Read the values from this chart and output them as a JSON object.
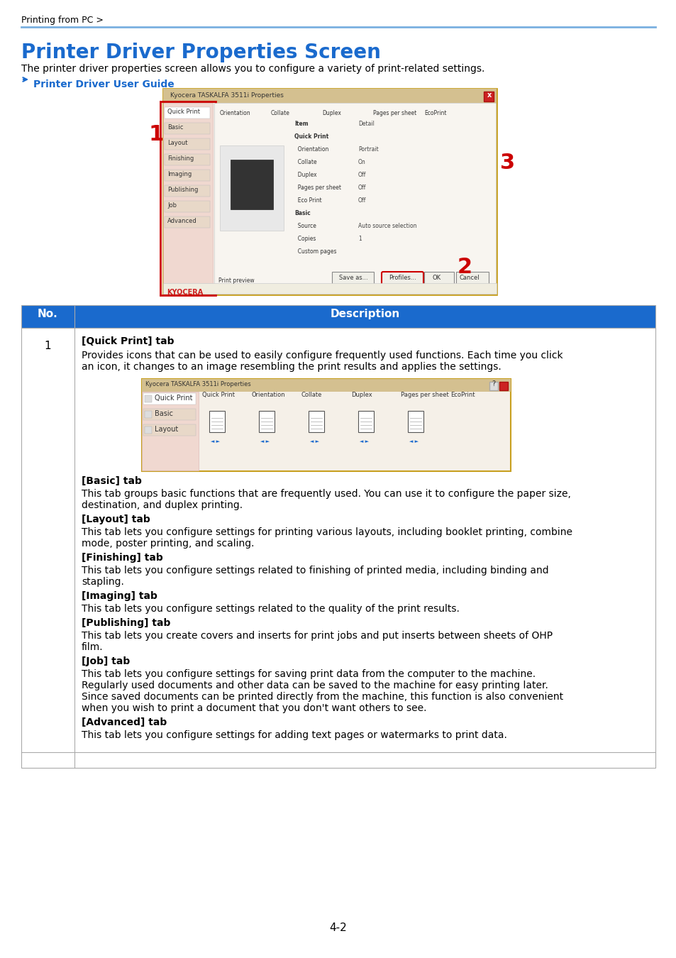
{
  "page_bg": "#ffffff",
  "breadcrumb": "Printing from PC >",
  "breadcrumb_color": "#000000",
  "breadcrumb_fontsize": 9,
  "separator_color": "#7ab0e0",
  "title": "Printer Driver Properties Screen",
  "title_color": "#1a6acd",
  "title_fontsize": 20,
  "subtitle": "The printer driver properties screen allows you to configure a variety of print-related settings.",
  "subtitle_fontsize": 10,
  "link_text": "Printer Driver User Guide",
  "link_color": "#1a6acd",
  "link_fontsize": 10,
  "table_header_bg": "#1a6acd",
  "table_header_text": "#ffffff",
  "table_border_color": "#aaaaaa",
  "table_row_bg": "#ffffff",
  "col1_header": "No.",
  "col2_header": "Description",
  "row1_no": "1",
  "row1_bold_labels": [
    "[Quick Print] tab",
    "[Basic] tab",
    "[Layout] tab",
    "[Finishing] tab",
    "[Imaging] tab",
    "[Publishing] tab",
    "[Job] tab",
    "[Advanced] tab"
  ],
  "row1_desc_intro": "Provides icons that can be used to easily configure frequently used functions. Each time you click\nan icon, it changes to an image resembling the print results and applies the settings.",
  "basic_tab_text": "This tab groups basic functions that are frequently used. You can use it to configure the paper size,\ndestination, and duplex printing.",
  "layout_tab_text": "This tab lets you configure settings for printing various layouts, including booklet printing, combine\nmode, poster printing, and scaling.",
  "finishing_tab_text": "This tab lets you configure settings related to finishing of printed media, including binding and\nstapling.",
  "imaging_tab_text": "This tab lets you configure settings related to the quality of the print results.",
  "publishing_tab_text": "This tab lets you create covers and inserts for print jobs and put inserts between sheets of OHP\nfilm.",
  "job_tab_text": "This tab lets you configure settings for saving print data from the computer to the machine.\nRegularly used documents and other data can be saved to the machine for easy printing later.\nSince saved documents can be printed directly from the machine, this function is also convenient\nwhen you wish to print a document that you don't want others to see.",
  "advanced_tab_text": "This tab lets you configure settings for adding text pages or watermarks to print data.",
  "page_number": "4-2",
  "screenshot_border": "#c8a020",
  "num1_color": "#cc0000",
  "num2_color": "#cc0000",
  "num3_color": "#cc0000"
}
